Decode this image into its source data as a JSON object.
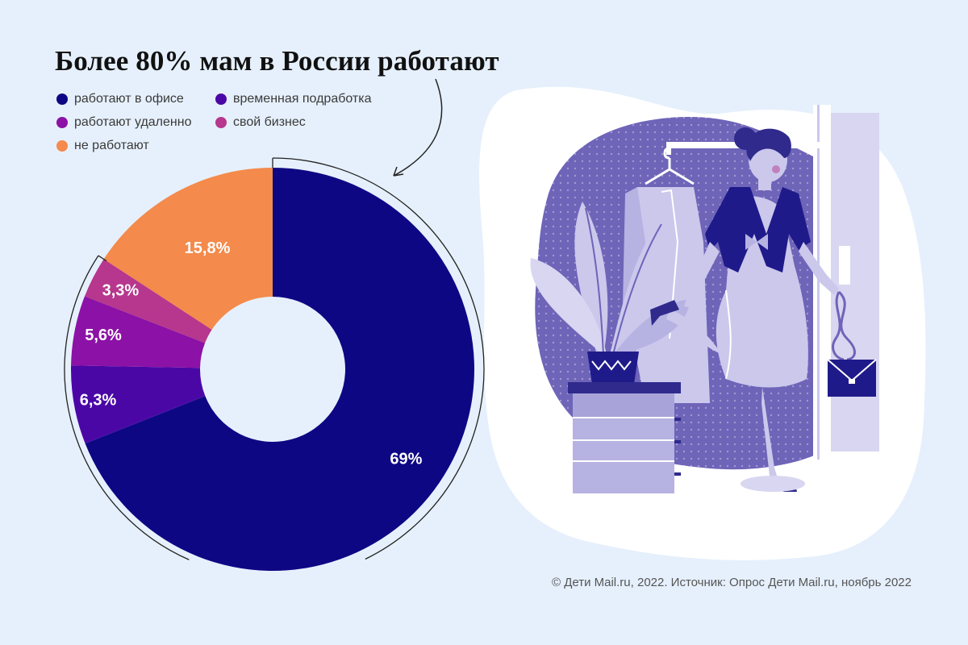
{
  "chart_data": {
    "type": "pie",
    "title": "Более 80% мам в России работают",
    "donut": true,
    "series": [
      {
        "name": "работают в офисе",
        "value": 69,
        "label": "69%",
        "color": "#0e0784"
      },
      {
        "name": "временная подработка",
        "value": 6.3,
        "label": "6,3%",
        "color": "#4b07a6"
      },
      {
        "name": "работают удаленно",
        "value": 5.6,
        "label": "5,6%",
        "color": "#8c11a6"
      },
      {
        "name": "свой бизнес",
        "value": 3.3,
        "label": "3,3%",
        "color": "#b6378d"
      },
      {
        "name": "не работают",
        "value": 15.8,
        "label": "15,8%",
        "color": "#f48a4b"
      }
    ],
    "legend_order": [
      0,
      1,
      2,
      3,
      4
    ],
    "legend_placement": "top-left"
  },
  "footer": {
    "source": "© Дети Mail.ru, 2022. Источник: Опрос Дети Mail.ru, ноябрь 2022"
  },
  "illustration": {
    "subject": "woman-trying-on-clothes-illustration",
    "colors": {
      "blob": "#6e64b8",
      "light": "#cbc8ec",
      "dark": "#2f2a8c",
      "white": "#ffffff"
    }
  }
}
